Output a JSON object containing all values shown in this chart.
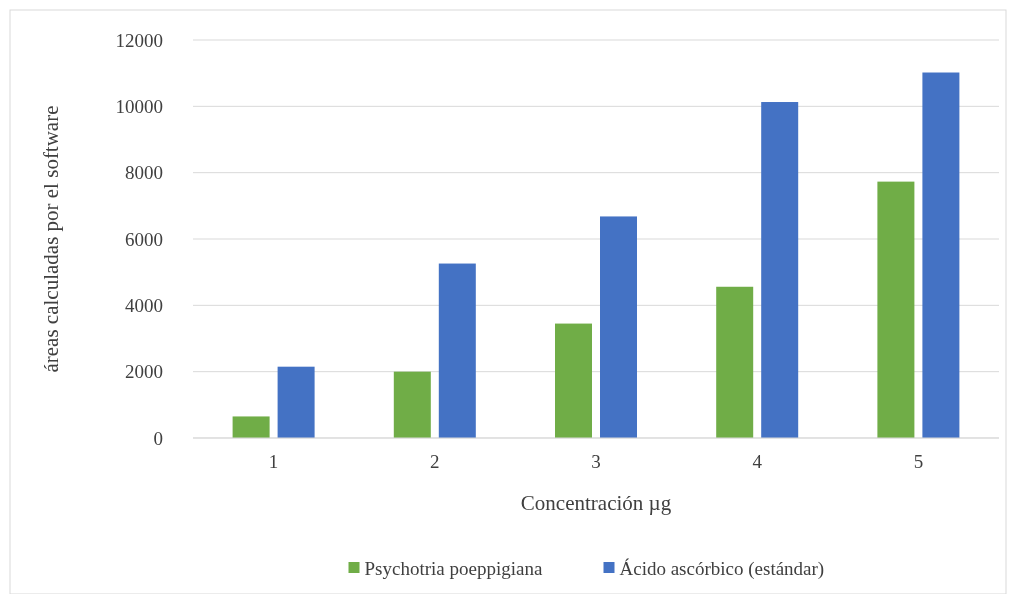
{
  "chart_data": {
    "type": "bar",
    "xlabel": "Concentración µg",
    "ylabel": "áreas calculadas por el software",
    "categories": [
      "1",
      "2",
      "3",
      "4",
      "5"
    ],
    "series": [
      {
        "name": "Psychotria poeppigiana",
        "color": "#70ad47",
        "values": [
          650,
          2000,
          3450,
          4560,
          7730
        ]
      },
      {
        "name": "Ácido ascórbico (estándar)",
        "color": "#4472c4",
        "values": [
          2150,
          5260,
          6680,
          10130,
          11020
        ]
      }
    ],
    "ylim": [
      0,
      12000
    ],
    "yticks": [
      0,
      2000,
      4000,
      6000,
      8000,
      10000,
      12000
    ],
    "grid": "y",
    "legend": "bottom"
  }
}
